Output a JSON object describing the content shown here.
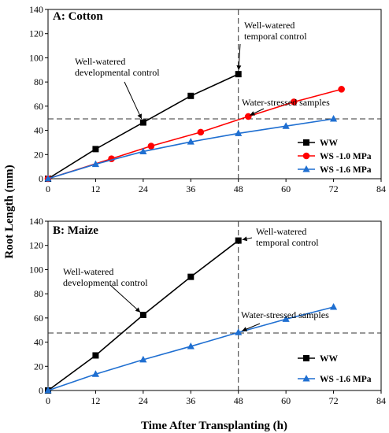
{
  "figure": {
    "ylabel": "Root Length (mm)",
    "xlabel": "Time After Transplanting (h)"
  },
  "colors": {
    "ww": "#000000",
    "ws10": "#ff0000",
    "ws16": "#1f6fd1",
    "marker_edge": "#1f6fd1"
  },
  "chart_data": [
    {
      "type": "line",
      "title": "A: Cotton",
      "xlim": [
        0,
        84
      ],
      "ylim": [
        0,
        140
      ],
      "xticks": [
        0,
        12,
        24,
        36,
        48,
        60,
        72,
        84
      ],
      "yticks": [
        0,
        20,
        40,
        60,
        80,
        100,
        120,
        140
      ],
      "grid": false,
      "legend_position": "bottom-right",
      "reference_lines": {
        "horizontal_y": 49.5,
        "vertical_x": 48
      },
      "series": [
        {
          "name": "WW",
          "color_key": "ww",
          "marker": "square",
          "x": [
            0,
            12,
            24,
            36,
            48
          ],
          "y": [
            0,
            24.5,
            46.5,
            68.5,
            86.5
          ]
        },
        {
          "name": "WS -1.0 MPa",
          "color_key": "ws10",
          "marker": "circle",
          "x": [
            0,
            16,
            26,
            38.5,
            50.5,
            62,
            74
          ],
          "y": [
            0,
            16.5,
            27,
            38.5,
            51.5,
            63.5,
            74
          ]
        },
        {
          "name": "WS -1.6 MPa",
          "color_key": "ws16",
          "marker": "triangle",
          "x": [
            0,
            12,
            24,
            36,
            48,
            60,
            72
          ],
          "y": [
            0,
            12,
            22.5,
            30.5,
            37.5,
            43.5,
            49.5
          ]
        }
      ],
      "annotations": [
        {
          "lines": [
            "Well-watered",
            "temporal control"
          ],
          "point": [
            48,
            86.5
          ]
        },
        {
          "lines": [
            "Well-watered",
            "developmental control"
          ],
          "point": [
            24,
            46.5
          ]
        },
        {
          "lines": [
            "Water-stressed samples"
          ],
          "point": [
            50,
            51
          ]
        }
      ]
    },
    {
      "type": "line",
      "title": "B: Maize",
      "xlim": [
        0,
        84
      ],
      "ylim": [
        0,
        140
      ],
      "xticks": [
        0,
        12,
        24,
        36,
        48,
        60,
        72,
        84
      ],
      "yticks": [
        0,
        20,
        40,
        60,
        80,
        100,
        120,
        140
      ],
      "grid": false,
      "legend_position": "bottom-right",
      "reference_lines": {
        "horizontal_y": 47.5,
        "vertical_x": 48
      },
      "series": [
        {
          "name": "WW",
          "color_key": "ww",
          "marker": "square",
          "x": [
            0,
            12,
            24,
            36,
            48
          ],
          "y": [
            0,
            29,
            62.5,
            94,
            124
          ]
        },
        {
          "name": "WS -1.6 MPa",
          "color_key": "ws16",
          "marker": "triangle",
          "x": [
            0,
            12,
            24,
            36,
            48,
            60,
            72
          ],
          "y": [
            0,
            13.5,
            25.5,
            36.5,
            48,
            59,
            69
          ]
        }
      ],
      "annotations": [
        {
          "lines": [
            "Well-watered",
            "temporal control"
          ],
          "point": [
            48,
            124
          ]
        },
        {
          "lines": [
            "Well-watered",
            "developmental control"
          ],
          "point": [
            24,
            62.5
          ]
        },
        {
          "lines": [
            "Water-stressed samples"
          ],
          "point": [
            48,
            48
          ]
        }
      ]
    }
  ]
}
